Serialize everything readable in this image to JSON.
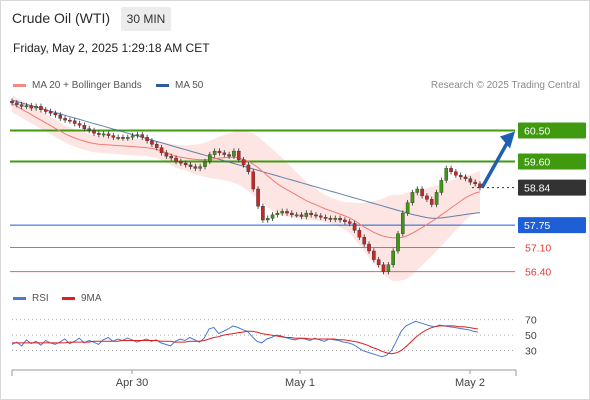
{
  "header": {
    "title": "Crude Oil (WTI)",
    "timeframe": "30 MIN",
    "datetime": "Friday, May 2, 2025 1:29:18 AM CET",
    "credit": "Research © 2025 Trading Central"
  },
  "legend_main": [
    {
      "label": "MA 20 + Bollinger Bands",
      "color": "#f28b82"
    },
    {
      "label": "MA 50",
      "color": "#2f5b9a"
    }
  ],
  "legend_rsi": [
    {
      "label": "RSI",
      "color": "#4a78d4"
    },
    {
      "label": "9MA",
      "color": "#e02020"
    }
  ],
  "chart_data": [
    {
      "type": "candlestick",
      "title": "Crude Oil (WTI)",
      "x_ticks": [
        "Apr 30",
        "May 1",
        "May 2"
      ],
      "ylim": [
        56.1,
        61.5
      ],
      "last_price": 58.84,
      "levels": [
        {
          "label": "60.50",
          "value": 60.5,
          "kind": "resistance",
          "color": "#3f9a10"
        },
        {
          "label": "59.60",
          "value": 59.6,
          "kind": "resistance",
          "color": "#3f9a10"
        },
        {
          "label": "58.84",
          "value": 58.84,
          "kind": "last",
          "color": "#333333"
        },
        {
          "label": "57.75",
          "value": 57.75,
          "kind": "pivot",
          "color": "#1f5fd6"
        },
        {
          "label": "57.10",
          "value": 57.1,
          "kind": "support",
          "color": "#e8605c"
        },
        {
          "label": "56.40",
          "value": 56.4,
          "kind": "support",
          "color": "#e8605c"
        }
      ],
      "close": [
        61.3,
        61.25,
        61.2,
        61.22,
        61.15,
        61.2,
        61.1,
        61.05,
        61.0,
        60.95,
        60.85,
        60.8,
        60.78,
        60.7,
        60.65,
        60.55,
        60.5,
        60.42,
        60.38,
        60.4,
        60.35,
        60.3,
        60.3,
        60.28,
        60.3,
        60.35,
        60.38,
        60.3,
        60.2,
        60.1,
        60.0,
        59.85,
        59.75,
        59.7,
        59.6,
        59.55,
        59.5,
        59.45,
        59.4,
        59.45,
        59.6,
        59.8,
        59.9,
        59.85,
        59.8,
        59.75,
        59.9,
        59.65,
        59.5,
        59.3,
        58.8,
        58.3,
        57.9,
        57.95,
        58.05,
        58.1,
        58.15,
        58.1,
        58.05,
        58.05,
        58.0,
        58.1,
        58.05,
        58.02,
        57.98,
        57.95,
        57.92,
        57.95,
        57.9,
        57.85,
        57.8,
        57.6,
        57.4,
        57.2,
        57.0,
        56.75,
        56.6,
        56.4,
        56.6,
        57.0,
        57.5,
        58.1,
        58.4,
        58.7,
        58.8,
        58.6,
        58.5,
        58.35,
        58.7,
        59.05,
        59.4,
        59.3,
        59.2,
        59.15,
        59.1,
        59.0,
        58.95,
        58.84
      ],
      "mid_band": [
        61.28,
        61.2,
        61.12,
        61.04,
        60.96,
        60.88,
        60.8,
        60.72,
        60.64,
        60.56,
        60.48,
        60.4,
        60.34,
        60.28,
        60.23,
        60.19,
        60.15,
        60.12,
        60.1,
        60.09,
        60.08,
        60.07,
        60.06,
        60.05,
        60.04,
        60.03,
        60.02,
        60.01,
        60.0,
        59.98,
        59.95,
        59.9,
        59.85,
        59.8,
        59.75,
        59.72,
        59.7,
        59.68,
        59.66,
        59.65,
        59.65,
        59.66,
        59.68,
        59.7,
        59.71,
        59.72,
        59.72,
        59.7,
        59.66,
        59.6,
        59.52,
        59.42,
        59.3,
        59.18,
        59.06,
        58.95,
        58.86,
        58.78,
        58.7,
        58.62,
        58.54,
        58.46,
        58.4,
        58.34,
        58.28,
        58.22,
        58.17,
        58.12,
        58.07,
        58.02,
        57.96,
        57.88,
        57.79,
        57.7,
        57.62,
        57.54,
        57.48,
        57.43,
        57.4,
        57.38,
        57.38,
        57.4,
        57.45,
        57.52,
        57.6,
        57.68,
        57.77,
        57.86,
        57.95,
        58.05,
        58.15,
        58.25,
        58.35,
        58.45,
        58.55,
        58.62,
        58.68,
        58.72
      ],
      "band_width": [
        0.25,
        0.25,
        0.25,
        0.25,
        0.25,
        0.25,
        0.25,
        0.25,
        0.25,
        0.25,
        0.25,
        0.25,
        0.25,
        0.25,
        0.25,
        0.25,
        0.25,
        0.25,
        0.25,
        0.25,
        0.25,
        0.25,
        0.25,
        0.25,
        0.25,
        0.25,
        0.25,
        0.25,
        0.25,
        0.25,
        0.25,
        0.27,
        0.29,
        0.31,
        0.33,
        0.35,
        0.37,
        0.4,
        0.43,
        0.46,
        0.5,
        0.54,
        0.58,
        0.62,
        0.66,
        0.7,
        0.74,
        0.78,
        0.82,
        0.86,
        0.9,
        0.9,
        0.9,
        0.9,
        0.9,
        0.88,
        0.84,
        0.78,
        0.72,
        0.66,
        0.6,
        0.55,
        0.5,
        0.46,
        0.42,
        0.4,
        0.38,
        0.38,
        0.38,
        0.4,
        0.45,
        0.52,
        0.6,
        0.7,
        0.8,
        0.9,
        1.0,
        1.1,
        1.2,
        1.25,
        1.25,
        1.25,
        1.25,
        1.2,
        1.15,
        1.1,
        1.05,
        1.0,
        0.95,
        0.9,
        0.85,
        0.8,
        0.75,
        0.7,
        0.65,
        0.6,
        0.6,
        0.6
      ],
      "ma50": [
        61.38,
        61.34,
        61.3,
        61.26,
        61.22,
        61.18,
        61.14,
        61.1,
        61.06,
        61.02,
        60.98,
        60.94,
        60.9,
        60.86,
        60.82,
        60.78,
        60.74,
        60.7,
        60.66,
        60.62,
        60.58,
        60.54,
        60.5,
        60.46,
        60.42,
        60.38,
        60.34,
        60.3,
        60.26,
        60.22,
        60.18,
        60.14,
        60.1,
        60.06,
        60.02,
        59.98,
        59.94,
        59.9,
        59.86,
        59.82,
        59.78,
        59.74,
        59.7,
        59.66,
        59.62,
        59.58,
        59.54,
        59.5,
        59.46,
        59.42,
        59.38,
        59.34,
        59.3,
        59.26,
        59.22,
        59.18,
        59.14,
        59.1,
        59.06,
        59.02,
        58.98,
        58.94,
        58.9,
        58.86,
        58.82,
        58.78,
        58.74,
        58.7,
        58.66,
        58.62,
        58.58,
        58.54,
        58.5,
        58.46,
        58.42,
        58.38,
        58.34,
        58.3,
        58.26,
        58.22,
        58.18,
        58.14,
        58.1,
        58.06,
        58.03,
        58.0,
        57.97,
        57.95,
        57.95,
        57.96,
        57.98,
        58.0,
        58.02,
        58.04,
        58.06,
        58.08,
        58.1,
        58.11
      ],
      "forecast": {
        "from": 58.84,
        "to": 60.5
      }
    },
    {
      "type": "line",
      "title": "RSI",
      "ylim": [
        10,
        80
      ],
      "y_ticks": [
        70,
        50,
        30
      ],
      "series": [
        {
          "name": "RSI",
          "color": "#4a78d4",
          "values": [
            38,
            41,
            36,
            44,
            39,
            42,
            37,
            43,
            40,
            38,
            41,
            45,
            39,
            42,
            46,
            40,
            43,
            41,
            38,
            44,
            47,
            42,
            45,
            43,
            46,
            44,
            41,
            43,
            45,
            42,
            44,
            40,
            38,
            36,
            42,
            45,
            43,
            47,
            44,
            41,
            46,
            58,
            60,
            52,
            55,
            58,
            62,
            60,
            57,
            55,
            48,
            42,
            40,
            45,
            47,
            50,
            49,
            47,
            45,
            44,
            46,
            45,
            43,
            46,
            44,
            42,
            45,
            44,
            43,
            41,
            40,
            38,
            34,
            30,
            28,
            26,
            24,
            22,
            24,
            30,
            42,
            55,
            62,
            65,
            68,
            66,
            64,
            62,
            61,
            63,
            62,
            61,
            60,
            59,
            58,
            57,
            55,
            54
          ]
        },
        {
          "name": "9MA",
          "color": "#e02020",
          "values": [
            40,
            40,
            40,
            40,
            40,
            40,
            40,
            40,
            40,
            40,
            40,
            40,
            41,
            41,
            41,
            41,
            41,
            42,
            42,
            42,
            42,
            42,
            42,
            43,
            43,
            43,
            43,
            43,
            43,
            43,
            43,
            42,
            42,
            42,
            41,
            41,
            41,
            42,
            42,
            42,
            43,
            45,
            47,
            48,
            50,
            51,
            52,
            53,
            54,
            55,
            55,
            54,
            52,
            51,
            50,
            49,
            48,
            47,
            47,
            46,
            46,
            46,
            45,
            45,
            45,
            45,
            45,
            45,
            44,
            44,
            43,
            42,
            41,
            39,
            37,
            34,
            32,
            29,
            27,
            26,
            27,
            30,
            35,
            41,
            47,
            52,
            56,
            59,
            61,
            62,
            62,
            62,
            62,
            61,
            61,
            60,
            59,
            58
          ]
        }
      ]
    }
  ]
}
